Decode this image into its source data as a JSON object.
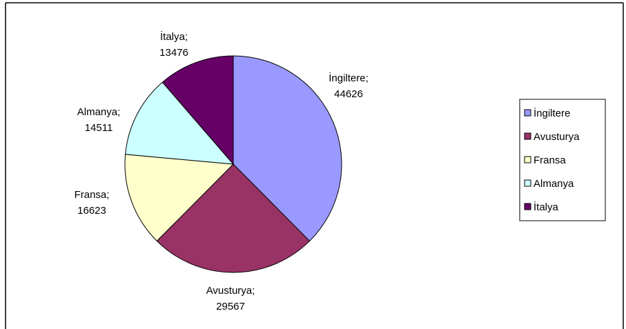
{
  "chart_data": {
    "type": "pie",
    "title": "",
    "slices": [
      {
        "name": "İngiltere",
        "value": 44626,
        "color": "#9999ff"
      },
      {
        "name": "Avusturya",
        "value": 29567,
        "color": "#993366"
      },
      {
        "name": "Fransa",
        "value": 16623,
        "color": "#ffffcc"
      },
      {
        "name": "Almanya",
        "value": 14511,
        "color": "#ccffff"
      },
      {
        "name": "İtalya",
        "value": 13476,
        "color": "#660066"
      }
    ],
    "slice_label_separator": ";",
    "legend_placement": "right"
  }
}
